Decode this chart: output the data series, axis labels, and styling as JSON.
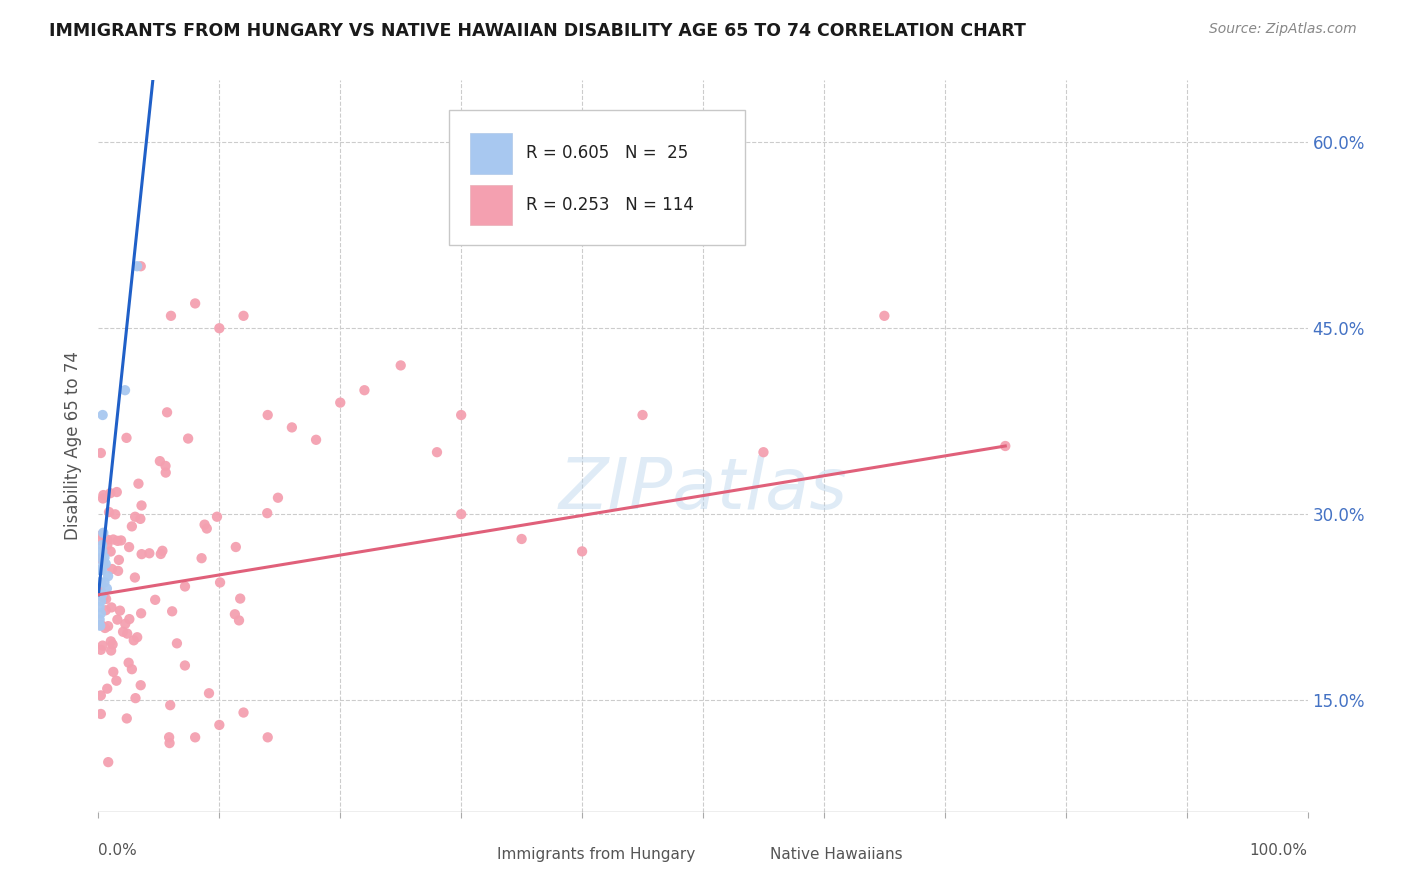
{
  "title": "IMMIGRANTS FROM HUNGARY VS NATIVE HAWAIIAN DISABILITY AGE 65 TO 74 CORRELATION CHART",
  "source": "Source: ZipAtlas.com",
  "ylabel": "Disability Age 65 to 74",
  "yticks": [
    "15.0%",
    "30.0%",
    "45.0%",
    "60.0%"
  ],
  "ytick_vals": [
    0.15,
    0.3,
    0.45,
    0.6
  ],
  "R1": 0.605,
  "N1": 25,
  "R2": 0.253,
  "N2": 114,
  "legend_label1": "Immigrants from Hungary",
  "legend_label2": "Native Hawaiians",
  "line1_color": "#2060c8",
  "line2_color": "#e0607a",
  "scatter1_color": "#a8c8f0",
  "scatter2_color": "#f4a0b0",
  "watermark": "ZIPatlas",
  "background_color": "#ffffff",
  "xlim": [
    0.0,
    1.0
  ],
  "ylim": [
    0.06,
    0.65
  ]
}
